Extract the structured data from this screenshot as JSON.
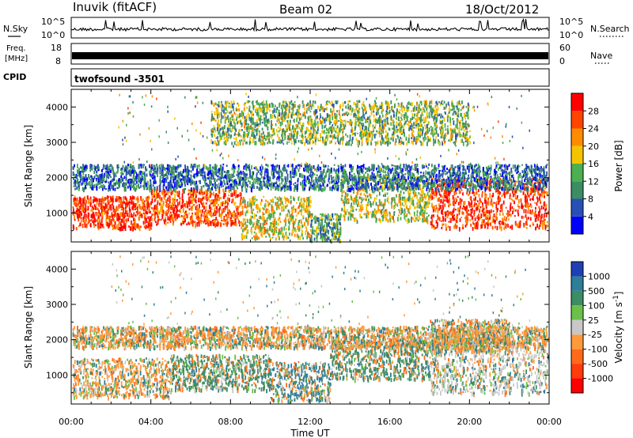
{
  "header": {
    "station": "Inuvik (fitACF)",
    "beam": "Beam 02",
    "date": "18/Oct/2012"
  },
  "noise_panel": {
    "left_label": "N.Sky",
    "right_label": "N.Search",
    "left_ticks": [
      "10^5",
      "10^0"
    ],
    "right_ticks": [
      "10^5",
      "10^0"
    ]
  },
  "freq_panel": {
    "left_label_1": "Freq.",
    "left_label_2": "[MHz]",
    "right_label": "Nave",
    "left_ticks": [
      "18",
      "8"
    ],
    "right_ticks": [
      "60",
      "0"
    ]
  },
  "cpid": {
    "label": "CPID",
    "value": "twofsound -3501"
  },
  "time_axis": {
    "label": "Time UT",
    "ticks": [
      "00:00",
      "04:00",
      "08:00",
      "12:00",
      "16:00",
      "20:00",
      "00:00"
    ]
  },
  "chart_data": [
    {
      "type": "heatmap",
      "name": "power",
      "ylabel": "Slant Range [km]",
      "yticks": [
        1000,
        2000,
        3000,
        4000
      ],
      "ylim": [
        180,
        4500
      ],
      "xlim_hours": [
        0,
        24
      ],
      "colorbar": {
        "label": "Power [dB]",
        "ticks": [
          "4",
          "8",
          "12",
          "16",
          "20",
          "24",
          "28"
        ],
        "colors": [
          "#0000ff",
          "#2850b4",
          "#3c8c64",
          "#4caf50",
          "#f5c400",
          "#ff8c00",
          "#ff4500",
          "#ff0000"
        ]
      },
      "bands": [
        {
          "t0": 0.0,
          "t1": 4.0,
          "r0": 600,
          "r1": 1500,
          "val": 28
        },
        {
          "t0": 4.0,
          "t1": 8.5,
          "r0": 700,
          "r1": 1700,
          "val": 26
        },
        {
          "t0": 8.5,
          "t1": 12.0,
          "r0": 300,
          "r1": 1500,
          "val": 18
        },
        {
          "t0": 12.0,
          "t1": 13.5,
          "r0": 250,
          "r1": 1000,
          "val": 12
        },
        {
          "t0": 13.5,
          "t1": 18.0,
          "r0": 800,
          "r1": 2100,
          "val": 16
        },
        {
          "t0": 18.0,
          "t1": 24.0,
          "r0": 600,
          "r1": 2000,
          "val": 27
        },
        {
          "t0": 0.0,
          "t1": 24.0,
          "r0": 1700,
          "r1": 2400,
          "val": 8
        },
        {
          "t0": 7.0,
          "t1": 20.0,
          "r0": 3000,
          "r1": 4200,
          "val": 14
        }
      ]
    },
    {
      "type": "heatmap",
      "name": "velocity",
      "ylabel": "Slant Range [km]",
      "yticks": [
        1000,
        2000,
        3000,
        4000
      ],
      "ylim": [
        180,
        4500
      ],
      "xlim_hours": [
        0,
        24
      ],
      "colorbar": {
        "label": "Velocity [m s^-1]",
        "ticks": [
          "1000",
          "500",
          "100",
          "25",
          "-25",
          "-100",
          "-500",
          "-1000"
        ],
        "colors": [
          "#1f3fb4",
          "#2e7d9a",
          "#3c8c64",
          "#6cc04a",
          "#c8c8c8",
          "#ff9a3c",
          "#ff6a1a",
          "#ff3c0a",
          "#ff0000"
        ]
      },
      "bands": [
        {
          "t0": 0.0,
          "t1": 5.0,
          "r0": 400,
          "r1": 1500,
          "val": -100
        },
        {
          "t0": 5.0,
          "t1": 10.0,
          "r0": 600,
          "r1": 1600,
          "val": 100
        },
        {
          "t0": 10.0,
          "t1": 13.0,
          "r0": 300,
          "r1": 1400,
          "val": 500
        },
        {
          "t0": 13.0,
          "t1": 18.0,
          "r0": 900,
          "r1": 2000,
          "val": 100
        },
        {
          "t0": 18.0,
          "t1": 24.0,
          "r0": 500,
          "r1": 2000,
          "val": 0
        },
        {
          "t0": 18.0,
          "t1": 22.0,
          "r0": 1700,
          "r1": 2600,
          "val": -100
        },
        {
          "t0": 0.0,
          "t1": 24.0,
          "r0": 1800,
          "r1": 2400,
          "val": -100
        }
      ]
    }
  ]
}
